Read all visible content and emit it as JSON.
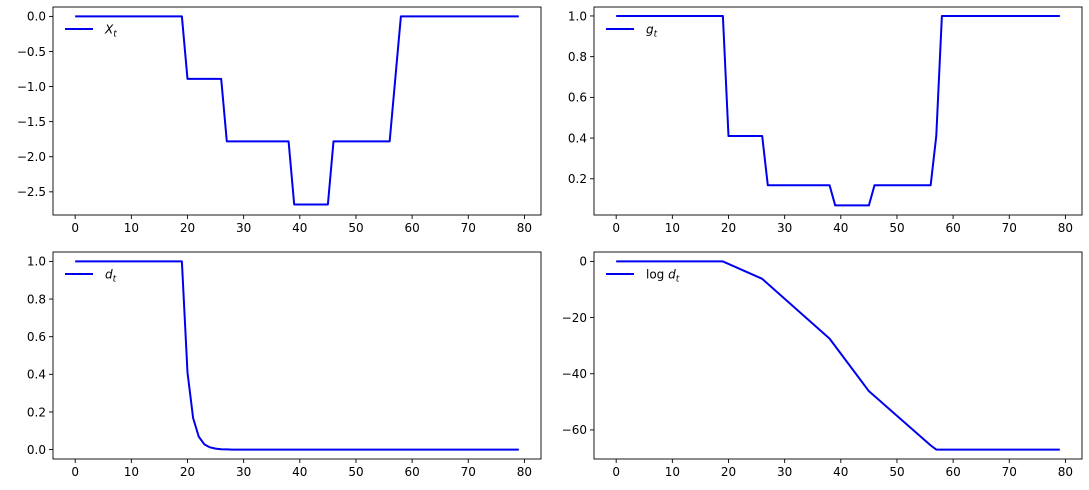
{
  "colors": {
    "line": "#0000ee",
    "axes": "#000000",
    "background": "#ffffff"
  },
  "chart_data": [
    {
      "type": "line",
      "legend": {
        "label_main": "X",
        "label_sub": "t",
        "placement": "upper left"
      },
      "xlim": [
        -3.95,
        82.95
      ],
      "ylim": [
        -2.83,
        0.134
      ],
      "xticks": [
        0,
        10,
        20,
        30,
        40,
        50,
        60,
        70,
        80
      ],
      "yticks": [
        0.0,
        -0.5,
        -1.0,
        -1.5,
        -2.0,
        -2.5
      ],
      "ytick_labels": [
        "0.0",
        "−0.5",
        "−1.0",
        "−1.5",
        "−2.0",
        "−2.5"
      ],
      "series": [
        {
          "x": [
            0,
            19,
            20,
            26,
            27,
            38,
            39,
            45,
            46,
            56,
            57,
            58,
            79
          ],
          "y": [
            0,
            0,
            -0.89,
            -0.89,
            -1.78,
            -1.78,
            -2.68,
            -2.68,
            -1.78,
            -1.78,
            -0.89,
            0,
            0
          ]
        }
      ]
    },
    {
      "type": "line",
      "legend": {
        "label_main": "g",
        "label_sub": "t",
        "placement": "upper left"
      },
      "xlim": [
        -3.95,
        82.95
      ],
      "ylim": [
        0.022,
        1.044
      ],
      "xticks": [
        0,
        10,
        20,
        30,
        40,
        50,
        60,
        70,
        80
      ],
      "yticks": [
        0.2,
        0.4,
        0.6,
        0.8,
        1.0
      ],
      "ytick_labels": [
        "0.2",
        "0.4",
        "0.6",
        "0.8",
        "1.0"
      ],
      "series": [
        {
          "x": [
            0,
            19,
            20,
            26,
            27,
            38,
            39,
            45,
            46,
            56,
            57,
            58,
            79
          ],
          "y": [
            1.0,
            1.0,
            0.41,
            0.41,
            0.168,
            0.168,
            0.069,
            0.069,
            0.168,
            0.168,
            0.41,
            1.0,
            1.0
          ]
        }
      ]
    },
    {
      "type": "line",
      "legend": {
        "label_main": "d",
        "label_sub": "t",
        "placement": "upper left"
      },
      "xlim": [
        -3.95,
        82.95
      ],
      "ylim": [
        -0.05,
        1.05
      ],
      "xticks": [
        0,
        10,
        20,
        30,
        40,
        50,
        60,
        70,
        80
      ],
      "yticks": [
        0.0,
        0.2,
        0.4,
        0.6,
        0.8,
        1.0
      ],
      "ytick_labels": [
        "0.0",
        "0.2",
        "0.4",
        "0.6",
        "0.8",
        "1.0"
      ],
      "series": [
        {
          "x": [
            0,
            19,
            20,
            21,
            22,
            23,
            24,
            25,
            26,
            27,
            28,
            30,
            79
          ],
          "y": [
            1.0,
            1.0,
            0.41,
            0.168,
            0.069,
            0.028,
            0.012,
            0.005,
            0.002,
            0.001,
            0.0,
            0.0,
            0.0
          ]
        }
      ]
    },
    {
      "type": "line",
      "legend": {
        "label_main": "d",
        "label_sub": "t",
        "label_prefix": "log ",
        "placement": "upper left"
      },
      "xlim": [
        -3.95,
        82.95
      ],
      "ylim": [
        -70.35,
        3.35
      ],
      "xticks": [
        0,
        10,
        20,
        30,
        40,
        50,
        60,
        70,
        80
      ],
      "yticks": [
        0,
        -20,
        -40,
        -60
      ],
      "ytick_labels": [
        "0",
        "−20",
        "−40",
        "−60"
      ],
      "series": [
        {
          "x": [
            0,
            19,
            26,
            38,
            45,
            56,
            57,
            79
          ],
          "y": [
            0,
            0,
            -6.2,
            -27.5,
            -46.2,
            -65.5,
            -67.0,
            -67.0
          ]
        }
      ]
    }
  ]
}
